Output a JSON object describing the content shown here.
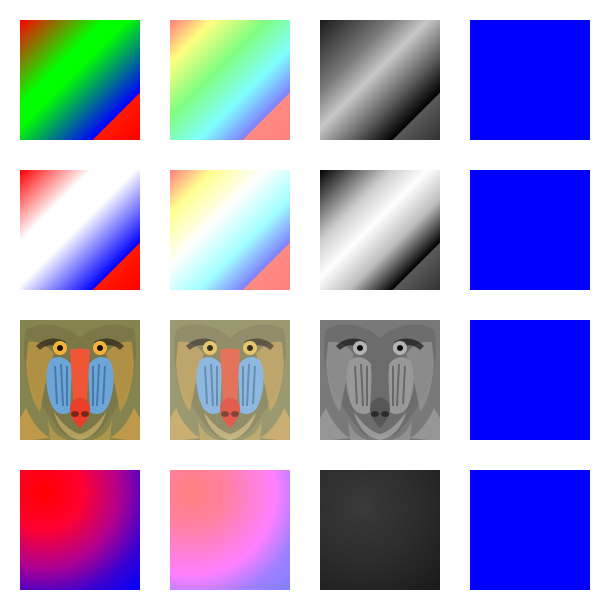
{
  "grid": {
    "tiles": [
      {
        "name": "tile-r1c1-gradient-green",
        "kind": "gradient",
        "row": 1,
        "col": 1
      },
      {
        "name": "tile-r1c2-gradient-pastel",
        "kind": "gradient",
        "row": 1,
        "col": 2
      },
      {
        "name": "tile-r1c3-gradient-gray",
        "kind": "gradient",
        "row": 1,
        "col": 3
      },
      {
        "name": "tile-r1c4-solid-blue",
        "kind": "solid",
        "row": 1,
        "col": 4,
        "color": "#0000ff"
      },
      {
        "name": "tile-r2c1-gradient-white-band",
        "kind": "gradient",
        "row": 2,
        "col": 1
      },
      {
        "name": "tile-r2c2-gradient-light",
        "kind": "gradient",
        "row": 2,
        "col": 2
      },
      {
        "name": "tile-r2c3-gradient-gray-white-band",
        "kind": "gradient",
        "row": 2,
        "col": 3
      },
      {
        "name": "tile-r2c4-solid-blue",
        "kind": "solid",
        "row": 2,
        "col": 4,
        "color": "#0000ff"
      },
      {
        "name": "tile-r3c1-mandrill-color",
        "kind": "image",
        "row": 3,
        "col": 1
      },
      {
        "name": "tile-r3c2-mandrill-washed",
        "kind": "image",
        "row": 3,
        "col": 2
      },
      {
        "name": "tile-r3c3-mandrill-gray",
        "kind": "image",
        "row": 3,
        "col": 3
      },
      {
        "name": "tile-r3c4-solid-blue",
        "kind": "solid",
        "row": 3,
        "col": 4,
        "color": "#0000ff"
      },
      {
        "name": "tile-r4c1-radial-red-blue",
        "kind": "gradient",
        "row": 4,
        "col": 1
      },
      {
        "name": "tile-r4c2-radial-pink-violet",
        "kind": "gradient",
        "row": 4,
        "col": 2
      },
      {
        "name": "tile-r4c3-dark-gray",
        "kind": "gradient",
        "row": 4,
        "col": 3
      },
      {
        "name": "tile-r4c4-solid-blue",
        "kind": "solid",
        "row": 4,
        "col": 4,
        "color": "#0000ff"
      }
    ]
  },
  "colors": {
    "background": "#ffffff",
    "solid_blue": "#0000ff",
    "red": "#ff0000",
    "green": "#00ff00"
  }
}
